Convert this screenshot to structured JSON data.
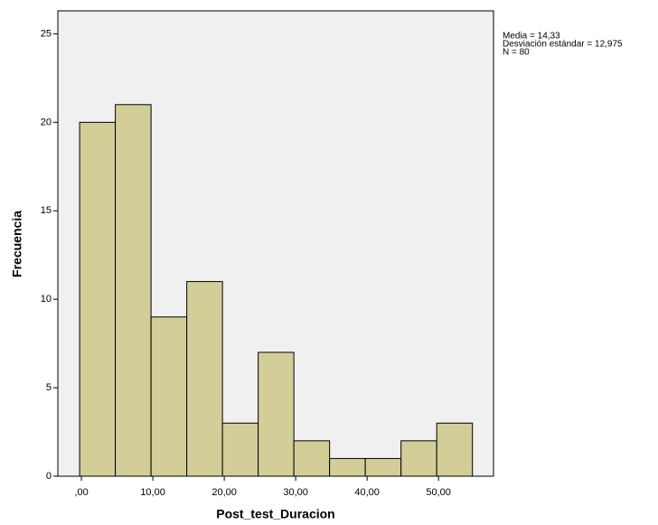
{
  "chart_data": {
    "type": "histogram",
    "x_label": "Post_test_Duracion",
    "y_label": "Frecuencia",
    "bins": [
      -0.25,
      4.75,
      9.75,
      14.75,
      19.75,
      24.75,
      29.75,
      34.75,
      39.75,
      44.75,
      49.75,
      54.75
    ],
    "counts": [
      20,
      21,
      9,
      11,
      3,
      7,
      2,
      1,
      1,
      2,
      3
    ],
    "color": "#d3ce97",
    "xlim": [
      -3.3,
      57.7
    ],
    "ylim": [
      0,
      26.3
    ],
    "xticks": [
      {
        "value": 0,
        "label": ",00"
      },
      {
        "value": 10,
        "label": "10,00"
      },
      {
        "value": 20,
        "label": "20,00"
      },
      {
        "value": 30,
        "label": "30,00"
      },
      {
        "value": 40,
        "label": "40,00"
      },
      {
        "value": 50,
        "label": "50,00"
      }
    ],
    "yticks": [
      0,
      5,
      10,
      15,
      20,
      25
    ],
    "stats": [
      "Media = 14,33",
      "Desviación estándar = 12,975",
      "N = 80"
    ]
  }
}
